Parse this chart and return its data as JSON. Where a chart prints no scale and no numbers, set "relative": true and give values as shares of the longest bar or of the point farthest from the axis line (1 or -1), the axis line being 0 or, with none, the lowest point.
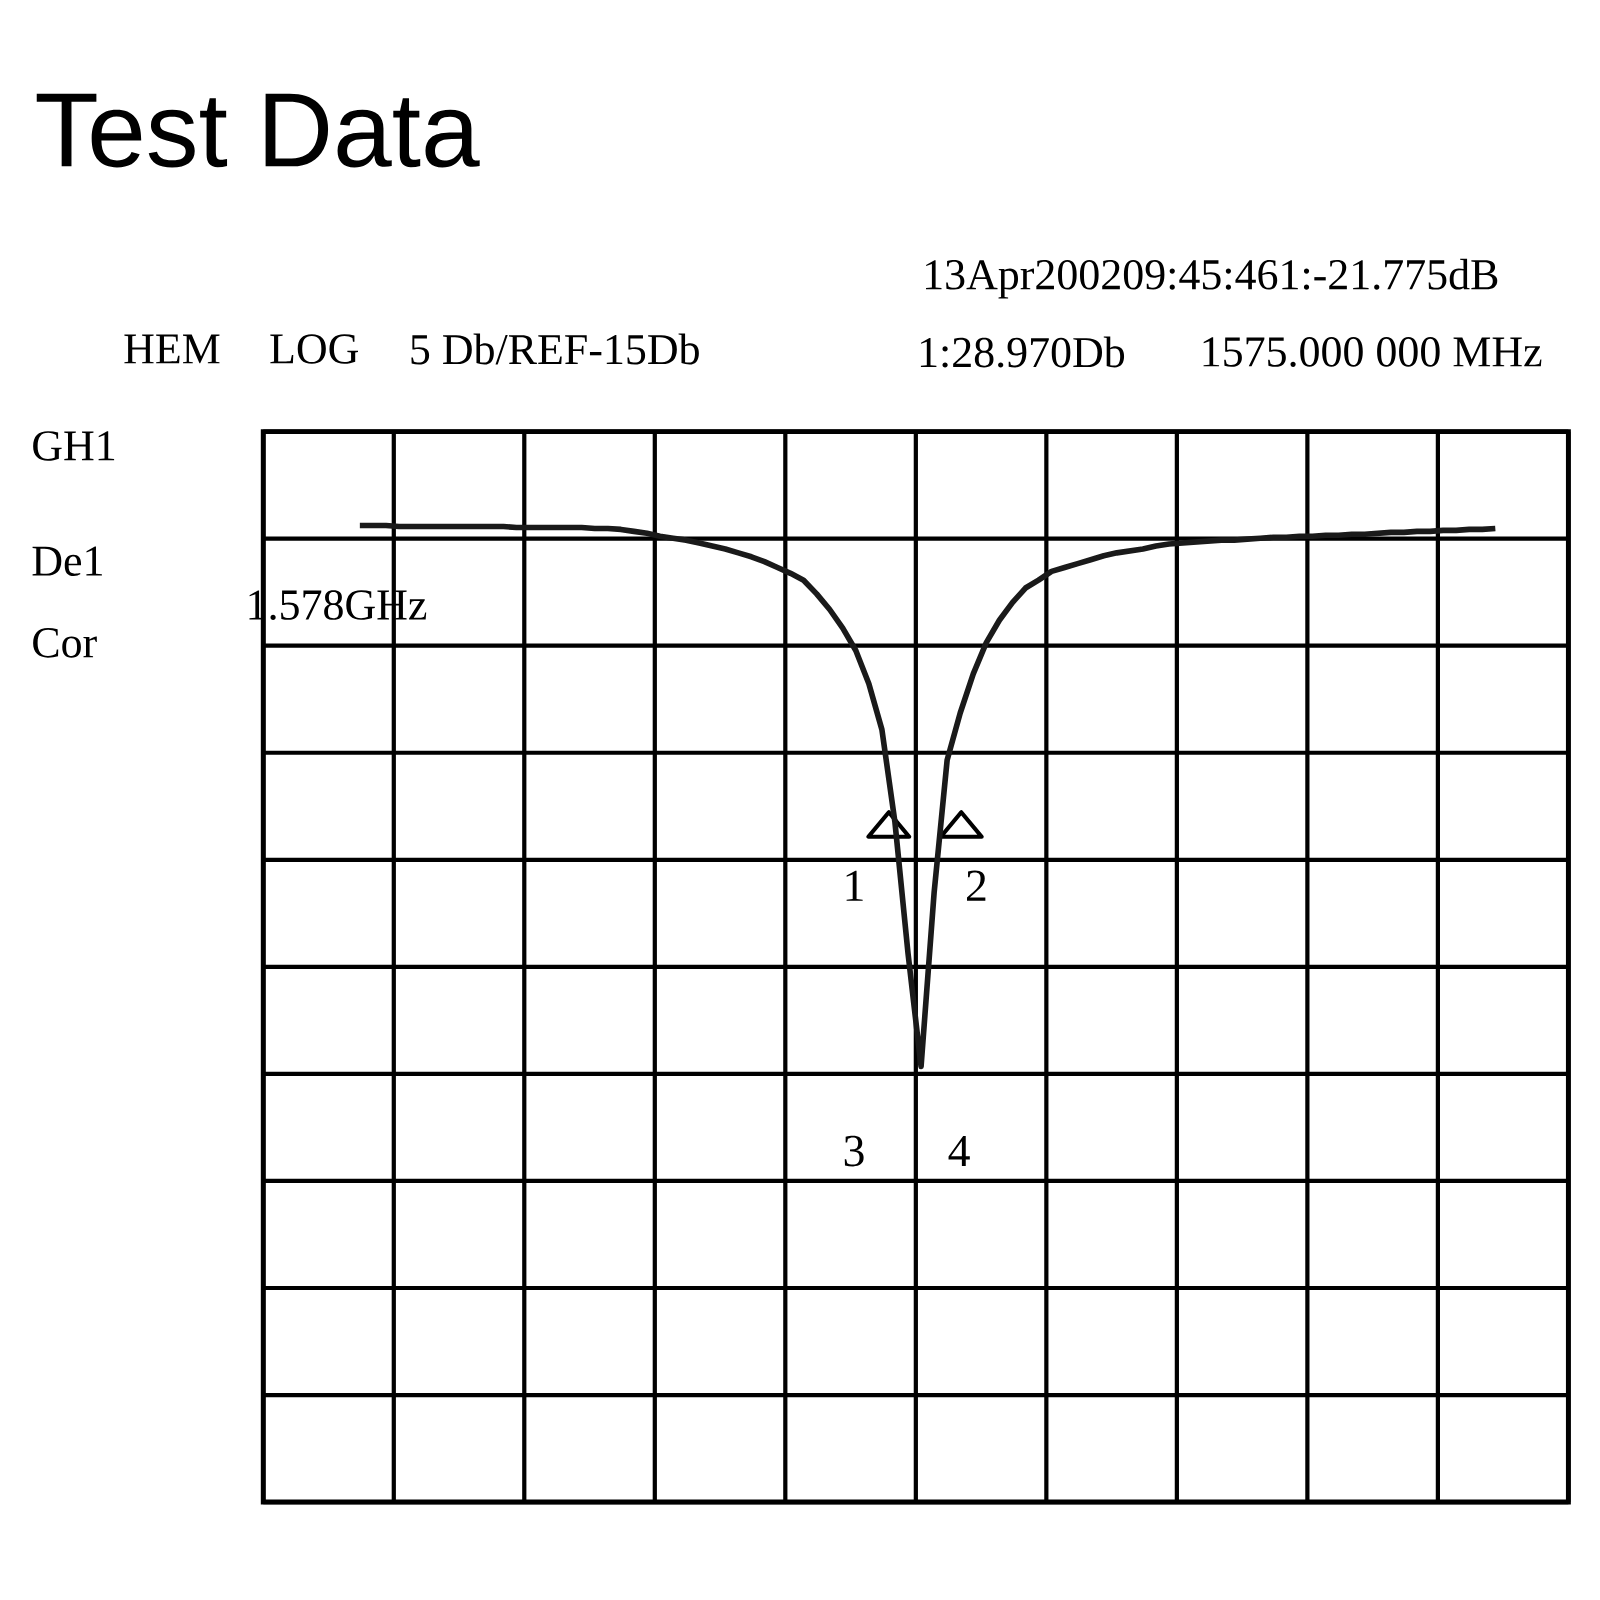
{
  "chart_data": {
    "type": "line",
    "title": "Test Data",
    "relative": true,
    "grid": true,
    "tick_labels": false,
    "marker": "none",
    "line_style": "solid",
    "color": "#1a1a1a",
    "categories": [
      null,
      null,
      null,
      null,
      null,
      null,
      null,
      null,
      null,
      null,
      null,
      null,
      null,
      null,
      null,
      null,
      null,
      null,
      null,
      null,
      null,
      null,
      null,
      null,
      null,
      null,
      null,
      null,
      null,
      null,
      null,
      null,
      null,
      null,
      null,
      null,
      null,
      null,
      null,
      null,
      null,
      null,
      null,
      null,
      null,
      null,
      null,
      null,
      null,
      null,
      null,
      null,
      null,
      null,
      null,
      null,
      null,
      null,
      null,
      null,
      null,
      null,
      null,
      null,
      null,
      null,
      null,
      null,
      null,
      null,
      null,
      null,
      null,
      null,
      null,
      null,
      null,
      null,
      null,
      null,
      null,
      null,
      null,
      null,
      null,
      null,
      null,
      null
    ],
    "values": [
      1.0,
      1.0,
      1.0,
      0.999,
      0.999,
      0.999,
      0.999,
      0.999,
      0.999,
      0.999,
      0.999,
      0.999,
      0.998,
      0.998,
      0.998,
      0.998,
      0.998,
      0.998,
      0.997,
      0.997,
      0.996,
      0.994,
      0.992,
      0.989,
      0.987,
      0.985,
      0.982,
      0.979,
      0.976,
      0.972,
      0.968,
      0.963,
      0.957,
      0.951,
      0.944,
      0.93,
      0.914,
      0.895,
      0.872,
      0.838,
      0.791,
      0.696,
      0.562,
      0.446,
      0.624,
      0.76,
      0.808,
      0.848,
      0.88,
      0.903,
      0.921,
      0.936,
      0.944,
      0.953,
      0.957,
      0.961,
      0.965,
      0.969,
      0.972,
      0.974,
      0.976,
      0.979,
      0.981,
      0.982,
      0.983,
      0.984,
      0.985,
      0.985,
      0.986,
      0.987,
      0.988,
      0.988,
      0.989,
      0.989,
      0.99,
      0.99,
      0.991,
      0.991,
      0.992,
      0.993,
      0.993,
      0.994,
      0.994,
      0.995,
      0.995,
      0.996,
      0.996,
      0.997
    ],
    "annotations": [
      "13Apr200209:45:461:-21.775dB",
      "HEM",
      "LOG",
      "5 Db/REF-15Db",
      "1:28.970Db",
      "1575.000 000 MHz",
      "GH1",
      "De1",
      "Cor",
      "1.578GHz",
      "1",
      "2",
      "3",
      "4"
    ]
  }
}
